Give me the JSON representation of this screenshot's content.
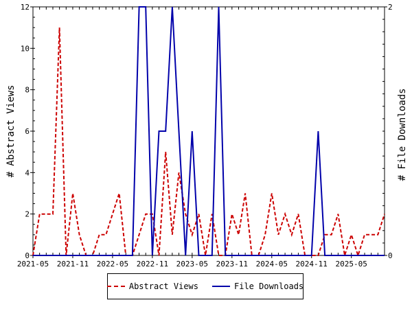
{
  "chart_data": {
    "type": "line",
    "x_tick_labels": [
      "2021-05",
      "2021-11",
      "2022-05",
      "2022-11",
      "2023-05",
      "2023-11",
      "2024-05",
      "2024-11",
      "2025-05"
    ],
    "x_start": "2021-05",
    "y_left": {
      "label": "# Abstract Views",
      "ylim": [
        0,
        12
      ],
      "ticks": [
        0,
        2,
        4,
        6,
        8,
        10,
        12
      ]
    },
    "y_right": {
      "label": "# File Downloads",
      "ylim": [
        0,
        2
      ],
      "ticks": [
        0,
        2
      ]
    },
    "grid": false,
    "legend_position": "bottom",
    "series": [
      {
        "name": "Abstract Views",
        "axis": "left",
        "color": "#cc0000",
        "style": "dashed",
        "values": [
          0,
          2,
          2,
          2,
          11,
          0,
          3,
          1,
          0,
          0,
          1,
          1,
          2,
          3,
          0,
          0,
          1,
          2,
          2,
          0,
          5,
          1,
          4,
          2,
          1,
          2,
          0,
          2,
          0,
          0,
          2,
          1,
          3,
          0,
          0,
          1,
          3,
          1,
          2,
          1,
          2,
          0,
          0,
          0,
          1,
          1,
          2,
          0,
          1,
          0,
          1,
          1,
          1,
          2
        ]
      },
      {
        "name": "File Downloads",
        "axis": "right",
        "color": "#0000aa",
        "style": "solid",
        "values": [
          0,
          0,
          0,
          0,
          0,
          0,
          0,
          0,
          0,
          0,
          0,
          0,
          0,
          0,
          0,
          0,
          2,
          2,
          0,
          1,
          1,
          2,
          1,
          0,
          1,
          0,
          0,
          0,
          2,
          0,
          0,
          0,
          0,
          0,
          0,
          0,
          0,
          0,
          0,
          0,
          0,
          0,
          0,
          1,
          0,
          0,
          0,
          0,
          0,
          0,
          0,
          0,
          0,
          0
        ]
      }
    ]
  },
  "legend": {
    "abstract_label": "Abstract Views",
    "downloads_label": "File Downloads"
  }
}
